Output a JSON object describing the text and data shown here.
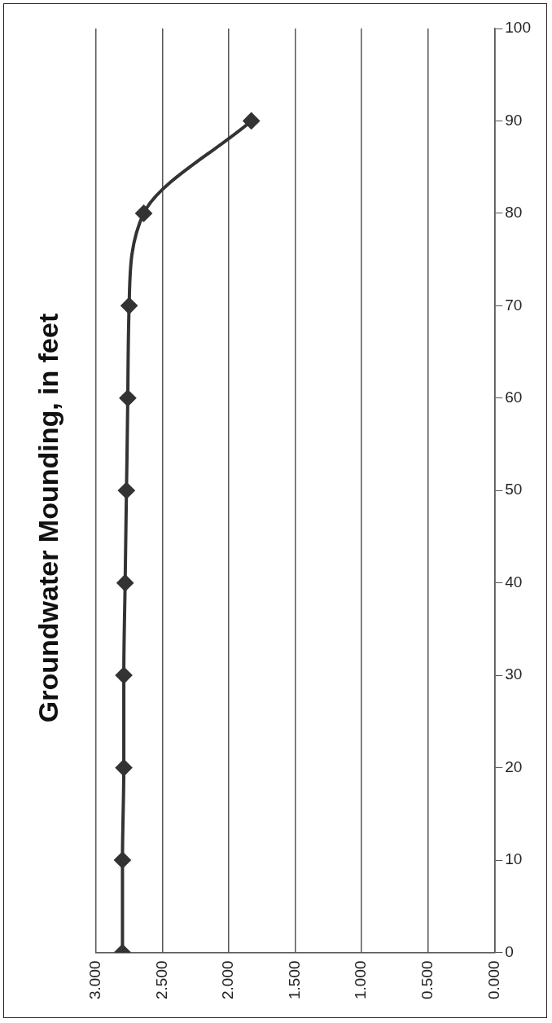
{
  "chart_data": {
    "type": "line",
    "title": "Groundwater Mounding, in feet",
    "x": [
      2.8,
      2.8,
      2.79,
      2.79,
      2.78,
      2.77,
      2.76,
      2.75,
      2.64,
      1.83
    ],
    "series": [
      {
        "color": "#333333",
        "values": [
          0,
          10,
          20,
          30,
          40,
          50,
          60,
          70,
          80,
          90
        ]
      }
    ],
    "xlim": [
      3,
      0
    ],
    "xticks": [
      {
        "value": 3,
        "label": "3.000"
      },
      {
        "value": 2.5,
        "label": "2.500"
      },
      {
        "value": 2,
        "label": "2.000"
      },
      {
        "value": 1.5,
        "label": "1.500"
      },
      {
        "value": 1,
        "label": "1.000"
      },
      {
        "value": 0.5,
        "label": "0.500"
      },
      {
        "value": 0,
        "label": "0.000"
      }
    ],
    "ylim": [
      0,
      100
    ],
    "yticks": [
      0,
      10,
      20,
      30,
      40,
      50,
      60,
      70,
      80,
      90,
      100
    ],
    "grid": "x",
    "legend": false,
    "marker": "diamond",
    "line_style": "solid"
  }
}
